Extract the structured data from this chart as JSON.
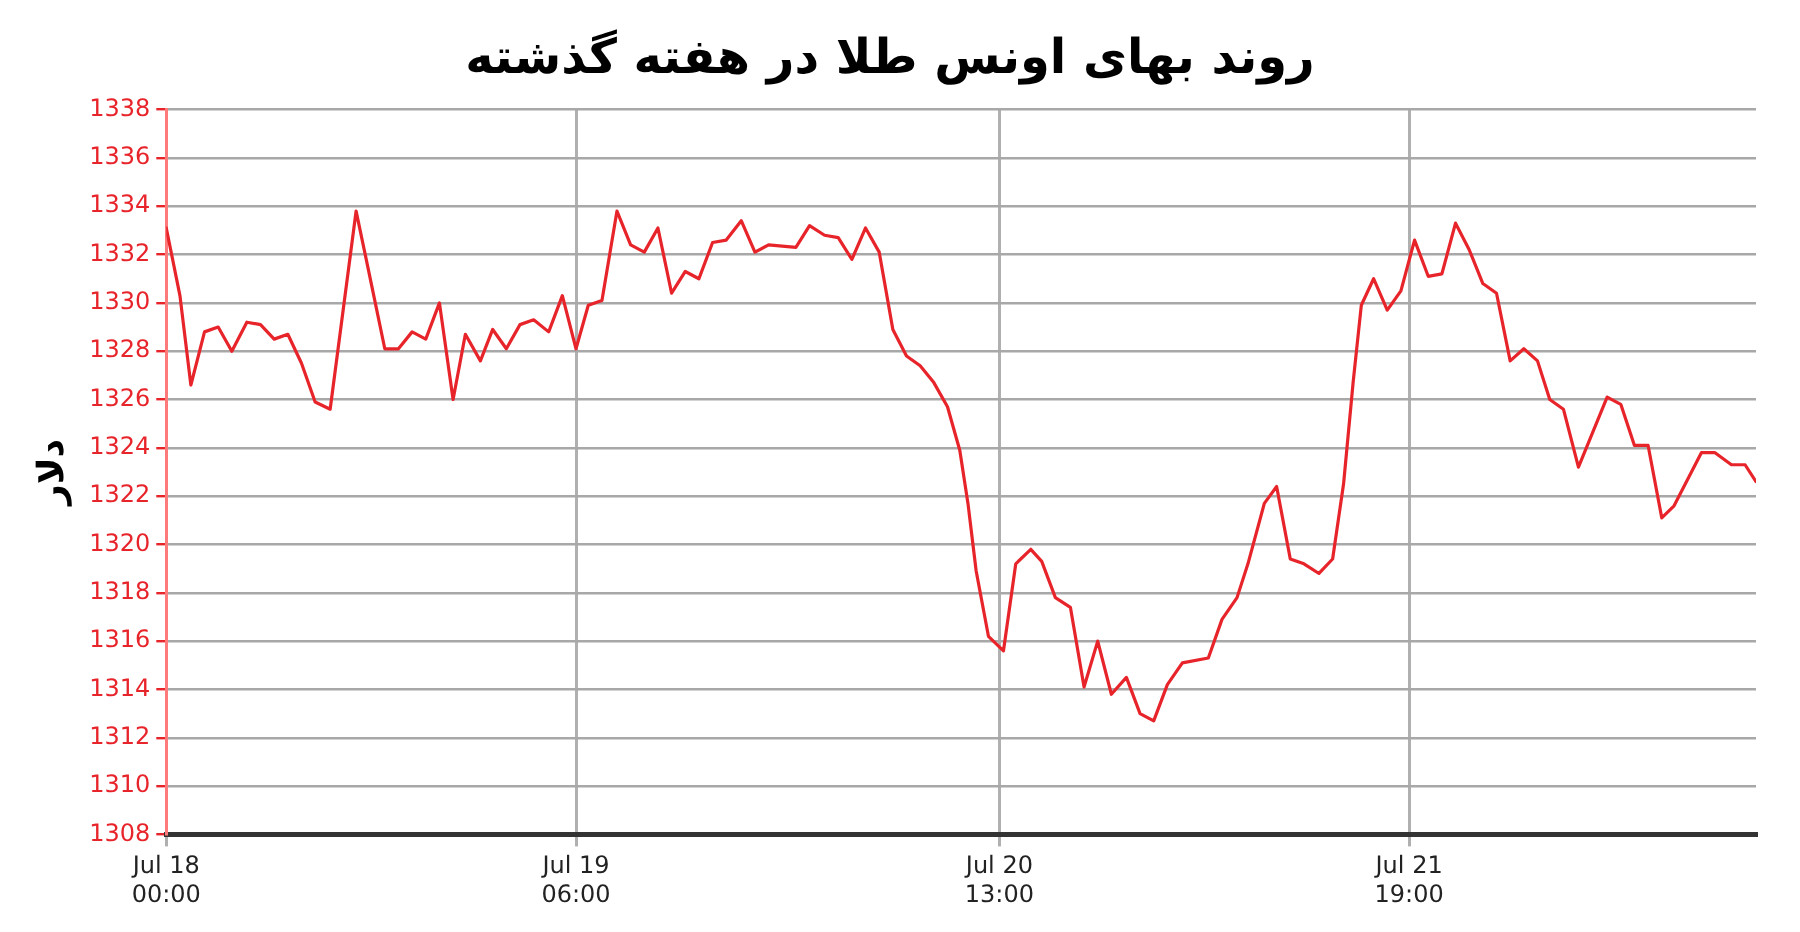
{
  "chart_data": {
    "type": "line",
    "title": "روند بهای اونس طلا در هفته گذشته",
    "ylabel": "دلار",
    "xlim": [
      "--07-18T00:00",
      "--07-22T20:24"
    ],
    "xticks": [
      {
        "value": "--07-18T00:00",
        "label": "Jul 18 00:00"
      },
      {
        "value": "--07-19T06:00",
        "label": "Jul 19 06:00"
      },
      {
        "value": "--07-20T13:00",
        "label": "Jul 20 13:00"
      },
      {
        "value": "--07-21T19:00",
        "label": "Jul 21 19:00"
      }
    ],
    "ylim": [
      1308,
      1338
    ],
    "yticks": [
      1308,
      1310,
      1312,
      1314,
      1316,
      1318,
      1320,
      1322,
      1324,
      1326,
      1328,
      1330,
      1332,
      1334,
      1336,
      1338
    ],
    "grid": true,
    "legend": false,
    "marker": "none",
    "line_style": "solid",
    "series": [
      {
        "color": "#e8242b",
        "x": [
          "--07-18T00:00",
          "--07-18T01:00",
          "--07-18T01:48",
          "--07-18T02:48",
          "--07-18T03:48",
          "--07-18T04:48",
          "--07-18T05:54",
          "--07-18T06:54",
          "--07-18T07:54",
          "--07-18T08:54",
          "--07-18T09:54",
          "--07-18T10:54",
          "--07-18T12:00",
          "--07-18T13:54",
          "--07-18T14:54",
          "--07-18T16:00",
          "--07-18T17:00",
          "--07-18T18:00",
          "--07-18T19:00",
          "--07-18T20:00",
          "--07-18T21:00",
          "--07-18T21:54",
          "--07-18T23:00",
          "--07-18T23:54",
          "--07-19T00:54",
          "--07-19T01:54",
          "--07-19T02:54",
          "--07-19T04:00",
          "--07-19T05:00",
          "--07-19T06:00",
          "--07-19T06:54",
          "--07-19T07:54",
          "--07-19T09:00",
          "--07-19T10:00",
          "--07-19T11:00",
          "--07-19T12:00",
          "--07-19T13:00",
          "--07-19T14:00",
          "--07-19T15:00",
          "--07-19T16:00",
          "--07-19T17:00",
          "--07-19T18:06",
          "--07-19T19:06",
          "--07-19T20:06",
          "--07-19T22:06",
          "--07-19T23:06",
          "--07-20T00:12",
          "--07-20T01:12",
          "--07-20T02:12",
          "--07-20T03:12",
          "--07-20T04:12",
          "--07-20T05:12",
          "--07-20T06:12",
          "--07-20T07:12",
          "--07-20T08:12",
          "--07-20T09:12",
          "--07-20T10:06",
          "--07-20T10:42",
          "--07-20T11:18",
          "--07-20T12:12",
          "--07-20T13:18",
          "--07-20T14:12",
          "--07-20T15:18",
          "--07-20T16:06",
          "--07-20T17:06",
          "--07-20T18:12",
          "--07-20T19:12",
          "--07-20T20:12",
          "--07-20T21:12",
          "--07-20T22:18",
          "--07-20T23:18",
          "--07-21T00:18",
          "--07-21T01:18",
          "--07-21T02:24",
          "--07-21T04:18",
          "--07-21T05:18",
          "--07-21T06:24",
          "--07-21T07:12",
          "--07-21T08:24",
          "--07-21T09:18",
          "--07-21T10:18",
          "--07-21T11:18",
          "--07-21T12:24",
          "--07-21T13:24",
          "--07-21T14:12",
          "--07-21T14:54",
          "--07-21T15:30",
          "--07-21T16:24",
          "--07-21T17:24",
          "--07-21T18:24",
          "--07-21T19:24",
          "--07-21T20:24",
          "--07-21T21:24",
          "--07-21T22:24",
          "--07-21T23:24",
          "--07-22T00:24",
          "--07-22T01:24",
          "--07-22T02:24",
          "--07-22T03:24",
          "--07-22T04:24",
          "--07-22T05:18",
          "--07-22T06:18",
          "--07-22T07:24",
          "--07-22T09:30",
          "--07-22T10:30",
          "--07-22T11:30",
          "--07-22T12:30",
          "--07-22T13:30",
          "--07-22T14:24",
          "--07-22T16:24",
          "--07-22T17:24",
          "--07-22T18:36",
          "--07-22T19:36",
          "--07-22T20:24"
        ],
        "values": [
          1333.1,
          1330.3,
          1326.6,
          1328.8,
          1329.0,
          1328.0,
          1329.2,
          1329.1,
          1328.5,
          1328.7,
          1327.5,
          1325.9,
          1325.6,
          1333.8,
          1331.1,
          1328.1,
          1328.1,
          1328.8,
          1328.5,
          1330.0,
          1326.0,
          1328.7,
          1327.6,
          1328.9,
          1328.1,
          1329.1,
          1329.3,
          1328.8,
          1330.3,
          1328.1,
          1329.9,
          1330.1,
          1333.8,
          1332.4,
          1332.1,
          1333.1,
          1330.4,
          1331.3,
          1331.0,
          1332.5,
          1332.6,
          1333.4,
          1332.1,
          1332.4,
          1332.3,
          1333.2,
          1332.8,
          1332.7,
          1331.8,
          1333.1,
          1332.1,
          1328.9,
          1327.8,
          1327.4,
          1326.7,
          1325.7,
          1323.9,
          1321.7,
          1318.9,
          1316.2,
          1315.6,
          1319.2,
          1319.8,
          1319.3,
          1317.8,
          1317.4,
          1314.1,
          1316.0,
          1313.8,
          1314.5,
          1313.0,
          1312.7,
          1314.2,
          1315.1,
          1315.3,
          1316.9,
          1317.8,
          1319.2,
          1321.7,
          1322.4,
          1319.4,
          1319.2,
          1318.8,
          1319.4,
          1322.5,
          1326.7,
          1329.9,
          1331.0,
          1329.7,
          1330.5,
          1332.6,
          1331.1,
          1331.2,
          1333.3,
          1332.2,
          1330.8,
          1330.4,
          1327.6,
          1328.1,
          1327.6,
          1326.0,
          1325.6,
          1323.2,
          1326.1,
          1325.8,
          1324.1,
          1324.1,
          1321.1,
          1321.6,
          1323.8,
          1323.8,
          1323.3,
          1323.3,
          1322.6
        ]
      }
    ]
  }
}
